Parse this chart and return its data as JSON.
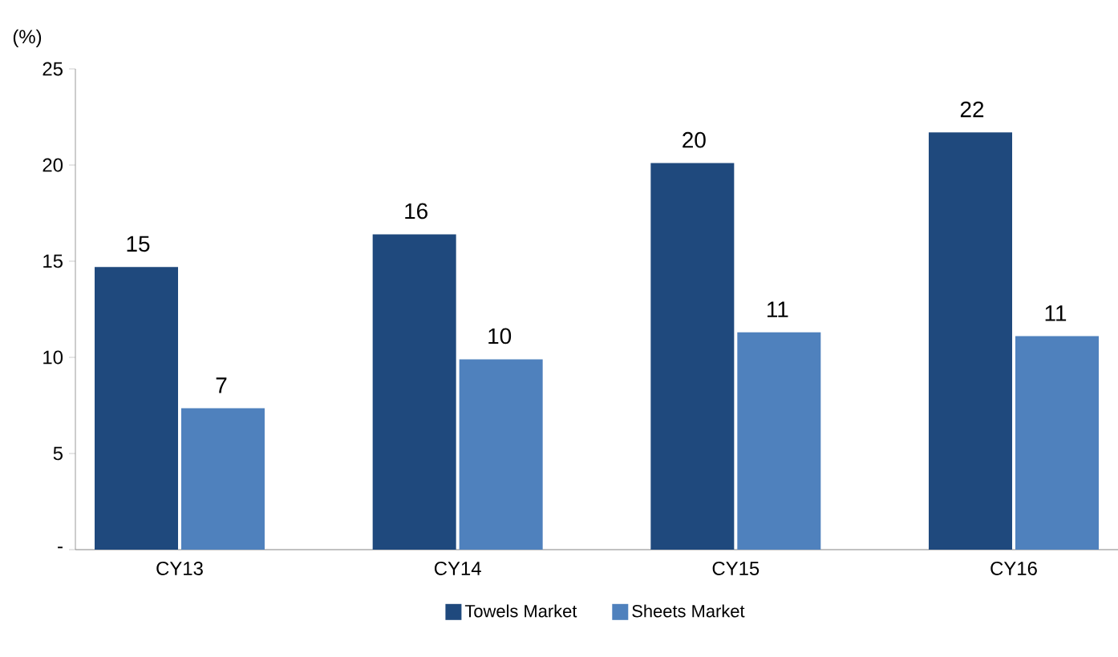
{
  "chart_data": {
    "type": "bar",
    "ylabel": "(%)",
    "categories": [
      "CY13",
      "CY14",
      "CY15",
      "CY16"
    ],
    "series": [
      {
        "name": "Towels Market",
        "color": "#1f497d",
        "values": [
          14.7,
          16.4,
          20.1,
          21.7
        ],
        "value_labels": [
          "15",
          "16",
          "20",
          "22"
        ]
      },
      {
        "name": "Sheets Market",
        "color": "#4f81bd",
        "values": [
          7.35,
          9.9,
          11.3,
          11.1
        ],
        "value_labels": [
          "7",
          "10",
          "11",
          "11"
        ]
      }
    ],
    "ylim": [
      0,
      25
    ],
    "yticks": [
      {
        "value": 0,
        "label": "-"
      },
      5,
      10,
      15,
      20,
      25
    ],
    "grid": false,
    "legend": "bottom"
  }
}
